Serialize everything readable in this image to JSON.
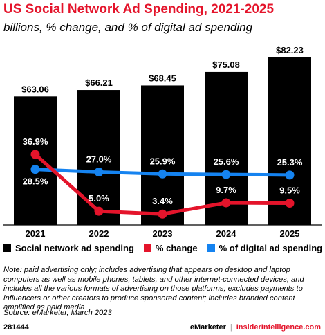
{
  "header": {
    "title": "US Social Network Ad Spending, 2021-2025",
    "subtitle": "billions, % change, and % of digital ad spending"
  },
  "colors": {
    "bar": "#000000",
    "change": "#e4142b",
    "share": "#1583f0",
    "title": "#e4142b"
  },
  "chart_data": {
    "type": "bar",
    "categories": [
      "2021",
      "2022",
      "2023",
      "2024",
      "2025"
    ],
    "series": [
      {
        "name": "Social network ad spending",
        "type": "bar",
        "values": [
          63.06,
          66.21,
          68.45,
          75.08,
          82.23
        ],
        "labels": [
          "$63.06",
          "$66.21",
          "$68.45",
          "$75.08",
          "$82.23"
        ]
      },
      {
        "name": "% change",
        "type": "line",
        "values": [
          36.9,
          5.0,
          3.4,
          9.7,
          9.5
        ],
        "labels": [
          "36.9%",
          "5.0%",
          "3.4%",
          "9.7%",
          "9.5%"
        ]
      },
      {
        "name": "% of digital ad spending",
        "type": "line",
        "values": [
          28.5,
          27.0,
          25.9,
          25.6,
          25.3
        ],
        "labels": [
          "28.5%",
          "27.0%",
          "25.9%",
          "25.6%",
          "25.3%"
        ]
      }
    ],
    "legend": "bottom",
    "grid": false
  },
  "legend": {
    "items": [
      "Social network ad spending",
      "% change",
      "% of digital ad spending"
    ]
  },
  "note": "Note: paid advertising only; includes advertising that appears on desktop and laptop computers as well as mobile phones, tablets, and other internet-connected devices, and includes all the various formats of advertising on those platforms; excludes payments to influencers or other creators to produce sponsored content; includes branded content amplified as paid media",
  "source": "Source: eMarketer, March 2023",
  "footer": {
    "id": "281444",
    "brand1": "eMarketer",
    "separator": "|",
    "brand2": "InsiderIntelligence.com"
  }
}
